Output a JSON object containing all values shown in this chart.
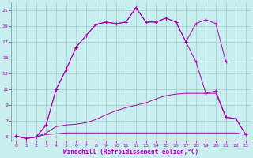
{
  "xlabel": "Windchill (Refroidissement éolien,°C)",
  "bg_color": "#c8eef0",
  "grid_color": "#a0c8c8",
  "line_color": "#aa00aa",
  "xlim": [
    -0.5,
    23.5
  ],
  "ylim": [
    4.5,
    22
  ],
  "yticks": [
    5,
    7,
    9,
    11,
    13,
    15,
    17,
    19,
    21
  ],
  "xticks": [
    0,
    1,
    2,
    3,
    4,
    5,
    6,
    7,
    8,
    9,
    10,
    11,
    12,
    13,
    14,
    15,
    16,
    17,
    18,
    19,
    20,
    21,
    22,
    23
  ],
  "line1_x": [
    0,
    1,
    2,
    3,
    4,
    5,
    6,
    7,
    8,
    9,
    10,
    11,
    12,
    13,
    14,
    15,
    16,
    17,
    18,
    19,
    20,
    21,
    22,
    23
  ],
  "line1_y": [
    5.1,
    4.8,
    5.0,
    5.3,
    5.4,
    5.5,
    5.5,
    5.5,
    5.5,
    5.5,
    5.5,
    5.5,
    5.5,
    5.5,
    5.5,
    5.5,
    5.5,
    5.5,
    5.5,
    5.5,
    5.5,
    5.5,
    5.5,
    5.3
  ],
  "line2_x": [
    0,
    1,
    2,
    3,
    4,
    5,
    6,
    7,
    8,
    9,
    10,
    11,
    12,
    13,
    14,
    15,
    16,
    17,
    18,
    19,
    20,
    21,
    22,
    23
  ],
  "line2_y": [
    5.1,
    4.8,
    5.0,
    5.5,
    6.3,
    6.5,
    6.6,
    6.8,
    7.2,
    7.8,
    8.3,
    8.7,
    9.0,
    9.3,
    9.8,
    10.2,
    10.4,
    10.5,
    10.5,
    10.5,
    10.5,
    7.5,
    7.3,
    5.3
  ],
  "line3_x": [
    0,
    1,
    2,
    3,
    4,
    5,
    6,
    7,
    8,
    9,
    10,
    11,
    12,
    13,
    14,
    15,
    16,
    17,
    18,
    19,
    20,
    21
  ],
  "line3_y": [
    5.1,
    4.8,
    5.0,
    6.5,
    11.0,
    13.5,
    16.3,
    17.8,
    19.2,
    19.5,
    19.3,
    19.5,
    21.3,
    19.5,
    19.5,
    20.0,
    19.5,
    17.0,
    19.3,
    19.8,
    19.3,
    14.5
  ],
  "line4_x": [
    0,
    1,
    2,
    3,
    4,
    5,
    6,
    7,
    8,
    9,
    10,
    11,
    12,
    13,
    14,
    15,
    16,
    17,
    18,
    19,
    20,
    21,
    22,
    23
  ],
  "line4_y": [
    5.1,
    4.8,
    5.0,
    6.5,
    11.0,
    13.5,
    16.3,
    17.8,
    19.2,
    19.5,
    19.3,
    19.5,
    21.3,
    19.5,
    19.5,
    20.0,
    19.5,
    17.0,
    14.5,
    10.5,
    10.8,
    7.5,
    7.3,
    5.3
  ]
}
